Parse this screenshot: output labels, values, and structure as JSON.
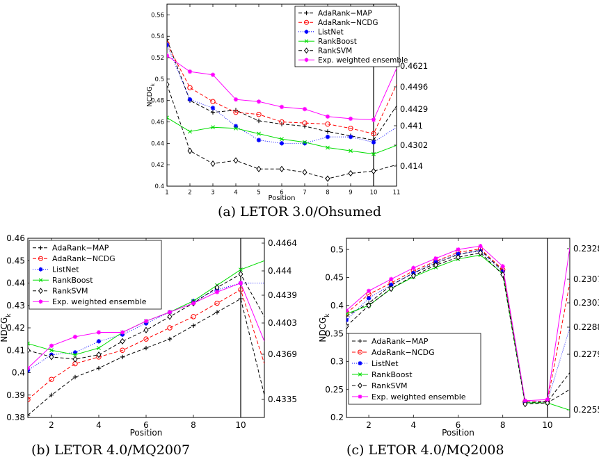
{
  "captions": {
    "a": "(a) LETOR 3.0/Ohsumed",
    "b": "(b) LETOR 4.0/MQ2007",
    "c": "(c) LETOR 4.0/MQ2008"
  },
  "colors": {
    "AdaRank-MAP": "#000000",
    "AdaRank-NCDG": "#ff0000",
    "ListNet": "#0000ff",
    "RankBoost": "#00dd00",
    "RankSVM": "#000000",
    "Exp. weighted ensemble": "#ff00ff"
  },
  "chart_data": [
    {
      "id": "a",
      "type": "line",
      "xlabel": "Position",
      "ylabel": "NCDG",
      "ylabel_sub": "k",
      "xlim": [
        1,
        11
      ],
      "ylim": [
        0.4,
        0.57
      ],
      "xticks": [
        "1",
        "2",
        "3",
        "4",
        "5",
        "6",
        "7",
        "8",
        "9",
        "10",
        "11"
      ],
      "yticks": [
        "0.4",
        "0.42",
        "0.44",
        "0.46",
        "0.48",
        "0.5",
        "0.52",
        "0.54",
        "0.56"
      ],
      "right_ticks": [
        "0.4621",
        "0.4496",
        "0.4429",
        "0.441",
        "0.4302",
        "0.414"
      ],
      "vline_x": 10,
      "legend_position": "top-right",
      "x": [
        1,
        2,
        3,
        4,
        5,
        6,
        7,
        8,
        9,
        10,
        11
      ],
      "series": [
        {
          "name": "AdaRank−MAP",
          "values": [
            0.537,
            0.48,
            0.469,
            0.471,
            0.461,
            0.458,
            0.456,
            0.451,
            0.447,
            0.443,
            0.475
          ]
        },
        {
          "name": "AdaRank−NCDG",
          "values": [
            0.533,
            0.492,
            0.479,
            0.469,
            0.467,
            0.46,
            0.459,
            0.458,
            0.454,
            0.449,
            0.495
          ]
        },
        {
          "name": "ListNet",
          "values": [
            0.532,
            0.481,
            0.473,
            0.456,
            0.443,
            0.44,
            0.44,
            0.446,
            0.446,
            0.441,
            0.455
          ]
        },
        {
          "name": "RankBoost",
          "values": [
            0.464,
            0.451,
            0.455,
            0.454,
            0.449,
            0.444,
            0.441,
            0.436,
            0.433,
            0.43,
            0.438
          ]
        },
        {
          "name": "RankSVM",
          "values": [
            0.495,
            0.433,
            0.421,
            0.424,
            0.416,
            0.416,
            0.413,
            0.407,
            0.412,
            0.414,
            0.42
          ]
        },
        {
          "name": "Exp. weighted ensemble",
          "values": [
            0.522,
            0.507,
            0.504,
            0.481,
            0.479,
            0.474,
            0.472,
            0.465,
            0.463,
            0.462,
            0.51
          ]
        }
      ]
    },
    {
      "id": "b",
      "type": "line",
      "xlabel": "Position",
      "ylabel": "NDCG",
      "ylabel_sub": "k",
      "xlim": [
        1,
        11
      ],
      "ylim": [
        0.38,
        0.46
      ],
      "xticks": [
        "2",
        "4",
        "6",
        "8",
        "10"
      ],
      "yticks": [
        "0.38",
        "0.39",
        "0.4",
        "0.41",
        "0.42",
        "0.43",
        "0.44",
        "0.45",
        "0.46"
      ],
      "right_ticks": [
        "0.4464",
        "0.444",
        "0.4439",
        "0.4403",
        "0.4369",
        "0.4335"
      ],
      "vline_x": 10,
      "legend_position": "top-left",
      "x": [
        1,
        2,
        3,
        4,
        5,
        6,
        7,
        8,
        9,
        10,
        11
      ],
      "series": [
        {
          "name": "AdaRank−MAP",
          "values": [
            0.381,
            0.39,
            0.398,
            0.402,
            0.407,
            0.411,
            0.415,
            0.421,
            0.427,
            0.433,
            0.39
          ]
        },
        {
          "name": "AdaRank−NCDG",
          "values": [
            0.388,
            0.397,
            0.404,
            0.407,
            0.41,
            0.415,
            0.42,
            0.425,
            0.431,
            0.437,
            0.404
          ]
        },
        {
          "name": "ListNet",
          "values": [
            0.401,
            0.408,
            0.409,
            0.414,
            0.417,
            0.422,
            0.427,
            0.432,
            0.437,
            0.44,
            0.44
          ]
        },
        {
          "name": "RankBoost",
          "values": [
            0.413,
            0.41,
            0.408,
            0.411,
            0.418,
            0.423,
            0.427,
            0.432,
            0.439,
            0.446,
            0.45
          ]
        },
        {
          "name": "RankSVM",
          "values": [
            0.41,
            0.407,
            0.406,
            0.408,
            0.414,
            0.419,
            0.425,
            0.431,
            0.438,
            0.444,
            0.425
          ]
        },
        {
          "name": "Exp. weighted ensemble",
          "values": [
            0.402,
            0.412,
            0.416,
            0.418,
            0.418,
            0.423,
            0.427,
            0.431,
            0.436,
            0.44,
            0.414
          ]
        }
      ]
    },
    {
      "id": "c",
      "type": "line",
      "xlabel": "Position",
      "ylabel": "NDCG",
      "ylabel_sub": "k",
      "xlim": [
        1,
        11
      ],
      "ylim": [
        0.2,
        0.52
      ],
      "xticks": [
        "2",
        "4",
        "6",
        "8",
        "10"
      ],
      "yticks": [
        "0.2",
        "0.25",
        "0.3",
        "0.35",
        "0.4",
        "0.45",
        "0.5"
      ],
      "right_ticks": [
        "0.2328",
        "0.2307",
        "0.2303",
        "0.2288",
        "0.2279",
        "0.2255"
      ],
      "vline_x": 10,
      "legend_position": "bottom-left",
      "x": [
        1,
        2,
        3,
        4,
        5,
        6,
        7,
        8,
        9,
        10,
        11
      ],
      "series": [
        {
          "name": "AdaRank−MAP",
          "values": [
            0.381,
            0.404,
            0.436,
            0.458,
            0.475,
            0.491,
            0.499,
            0.462,
            0.226,
            0.228,
            0.28
          ]
        },
        {
          "name": "AdaRank−NCDG",
          "values": [
            0.386,
            0.42,
            0.44,
            0.462,
            0.479,
            0.495,
            0.501,
            0.464,
            0.228,
            0.229,
            0.44
          ]
        },
        {
          "name": "ListNet",
          "values": [
            0.374,
            0.413,
            0.437,
            0.458,
            0.478,
            0.492,
            0.497,
            0.46,
            0.227,
            0.229,
            0.36
          ]
        },
        {
          "name": "RankBoost",
          "values": [
            0.385,
            0.4,
            0.43,
            0.451,
            0.468,
            0.483,
            0.49,
            0.457,
            0.226,
            0.226,
            0.213
          ]
        },
        {
          "name": "RankSVM",
          "values": [
            0.363,
            0.4,
            0.43,
            0.453,
            0.472,
            0.486,
            0.494,
            0.455,
            0.224,
            0.226,
            0.25
          ]
        },
        {
          "name": "Exp. weighted ensemble",
          "values": [
            0.391,
            0.426,
            0.447,
            0.467,
            0.484,
            0.5,
            0.506,
            0.47,
            0.23,
            0.232,
            0.503
          ]
        }
      ]
    }
  ]
}
